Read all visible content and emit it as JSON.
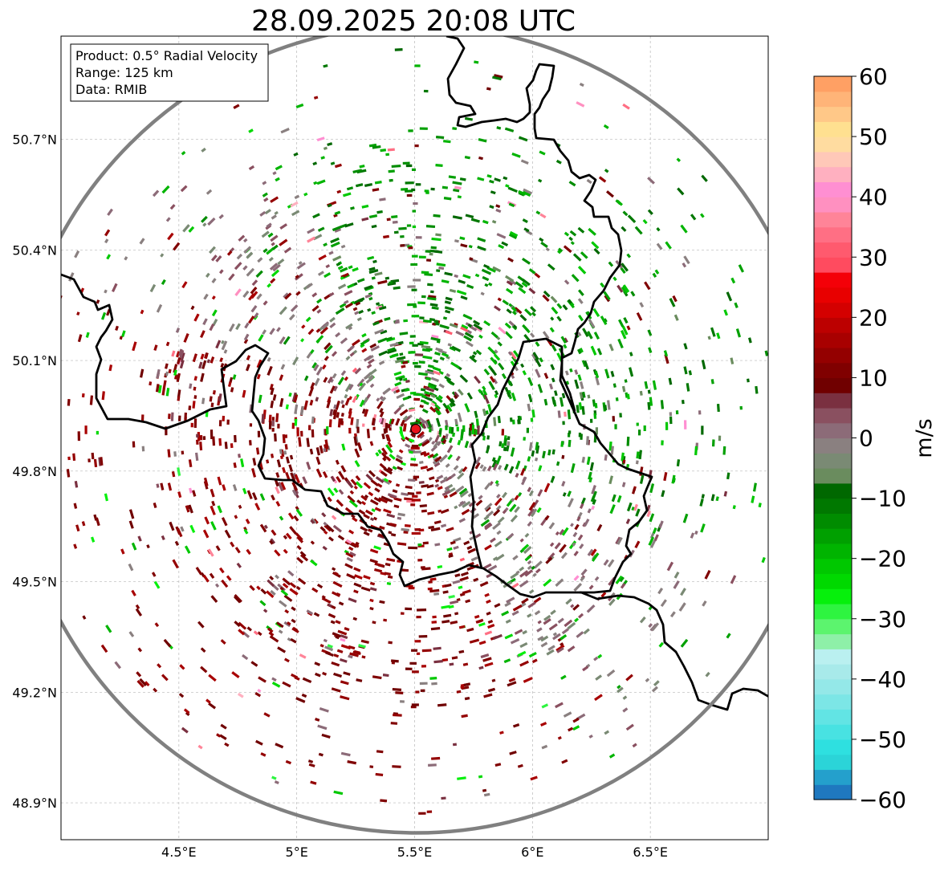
{
  "title": "28.09.2025 20:08 UTC",
  "info_box": {
    "line1": "Product: 0.5° Radial Velocity",
    "line2": "Range: 125 km",
    "line3": "Data: RMIB"
  },
  "map": {
    "lon_range": [
      4.0,
      7.0
    ],
    "lat_range": [
      48.8,
      50.98
    ],
    "grid": true,
    "x_ticks": [
      {
        "value": 4.5,
        "label": "4.5°E"
      },
      {
        "value": 5.0,
        "label": "5°E"
      },
      {
        "value": 5.5,
        "label": "5.5°E"
      },
      {
        "value": 6.0,
        "label": "6°E"
      },
      {
        "value": 6.5,
        "label": "6.5°E"
      }
    ],
    "y_ticks": [
      {
        "value": 50.7,
        "label": "50.7°N"
      },
      {
        "value": 50.4,
        "label": "50.4°N"
      },
      {
        "value": 50.1,
        "label": "50.1°N"
      },
      {
        "value": 49.8,
        "label": "49.8°N"
      },
      {
        "value": 49.5,
        "label": "49.5°N"
      },
      {
        "value": 49.2,
        "label": "49.2°N"
      },
      {
        "value": 48.9,
        "label": "48.9°N"
      }
    ],
    "radar_site": {
      "lon": 5.505,
      "lat": 49.914
    },
    "range_km": 125,
    "range_ring_color": "#808080",
    "site_color": "#e8141c",
    "border_color": "#000000"
  },
  "colorbar": {
    "label": "m/s",
    "min": -60,
    "max": 60,
    "ticks": [
      {
        "value": 60,
        "label": "60"
      },
      {
        "value": 50,
        "label": "50"
      },
      {
        "value": 40,
        "label": "40"
      },
      {
        "value": 30,
        "label": "30"
      },
      {
        "value": 20,
        "label": "20"
      },
      {
        "value": 10,
        "label": "10"
      },
      {
        "value": 0,
        "label": "0"
      },
      {
        "value": -10,
        "label": "−10"
      },
      {
        "value": -20,
        "label": "−20"
      },
      {
        "value": -30,
        "label": "−30"
      },
      {
        "value": -40,
        "label": "−40"
      },
      {
        "value": -50,
        "label": "−50"
      },
      {
        "value": -60,
        "label": "−60"
      }
    ],
    "colors": [
      "#1f78bf",
      "#24a0cc",
      "#2bd4d8",
      "#2ee0e0",
      "#48e2e2",
      "#62e4e4",
      "#7ce6e6",
      "#94e8e8",
      "#a8eaea",
      "#baf0f0",
      "#8ef0a8",
      "#5cf46e",
      "#2ef440",
      "#06f00c",
      "#00d900",
      "#00c800",
      "#00b400",
      "#00a000",
      "#008c00",
      "#007800",
      "#006800",
      "#6a8c5e",
      "#7a8a74",
      "#8a8080",
      "#8c6b78",
      "#8a5060",
      "#7a3040",
      "#700000",
      "#800000",
      "#940000",
      "#a80000",
      "#bc0000",
      "#d40000",
      "#e80000",
      "#f40008",
      "#ff4b5f",
      "#ff5a6e",
      "#ff6f84",
      "#ff8498",
      "#ff90c0",
      "#ff8fd2",
      "#ffb0c0",
      "#ffc8b8",
      "#ffdca0",
      "#ffe090",
      "#ffc888",
      "#ffb478",
      "#ffa064"
    ]
  }
}
